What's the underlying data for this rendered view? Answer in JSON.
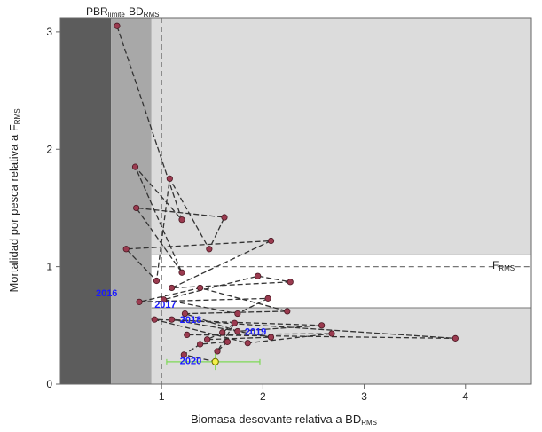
{
  "chart_data": {
    "type": "scatter",
    "xlabel": {
      "main": "Biomasa desovante relativa a BD",
      "sub": "RMS"
    },
    "ylabel": {
      "main": "Mortalidad por pesca relativa a F",
      "sub": "RMS"
    },
    "xlim": [
      0,
      4.65
    ],
    "ylim": [
      0,
      3.12
    ],
    "x_ticks": [
      1,
      2,
      3,
      4
    ],
    "y_ticks": [
      0,
      1,
      2,
      3
    ],
    "reference_labels": {
      "pbr": {
        "main": "PBR",
        "sub": "límite"
      },
      "bd": {
        "main": "BD",
        "sub": "RMS"
      },
      "f": {
        "main": "F",
        "sub": "RMS"
      }
    },
    "zones": {
      "pbr_limit_x": 0.5,
      "bd_rms_x": 0.9,
      "bd_rms_dashed_x": 1.0,
      "f_rms_y": 1.0,
      "f_upper_y": 1.1,
      "f_lower_y": 0.65,
      "colors": {
        "collapse": "#5c5c5c",
        "overexploited": "#a8a8a8",
        "warning": "#dcdcdc",
        "full": "#ffffff"
      }
    },
    "series": [
      {
        "points": [
          [
            0.56,
            3.05
          ],
          [
            1.2,
            1.4
          ],
          [
            0.74,
            1.85
          ],
          [
            1.2,
            0.95
          ],
          [
            0.75,
            1.5
          ],
          [
            1.62,
            1.42
          ],
          [
            1.47,
            1.15
          ],
          [
            1.08,
            1.75
          ],
          [
            0.95,
            0.88
          ],
          [
            0.65,
            1.15
          ],
          [
            2.08,
            1.22
          ],
          [
            1.1,
            0.82
          ],
          [
            2.27,
            0.87
          ],
          [
            1.95,
            0.92
          ],
          [
            1.02,
            0.72
          ],
          [
            1.75,
            0.6
          ],
          [
            2.05,
            0.73
          ],
          [
            0.78,
            0.7
          ],
          [
            1.38,
            0.82
          ],
          [
            2.24,
            0.62
          ],
          [
            1.23,
            0.6
          ],
          [
            1.75,
            0.45
          ],
          [
            2.58,
            0.5
          ],
          [
            0.93,
            0.55
          ],
          [
            1.85,
            0.35
          ],
          [
            2.68,
            0.43
          ],
          [
            1.25,
            0.42
          ],
          [
            3.9,
            0.39
          ],
          [
            1.1,
            0.55
          ],
          [
            2.08,
            0.4
          ],
          [
            1.45,
            0.38
          ],
          [
            1.6,
            0.44
          ],
          [
            1.72,
            0.52
          ],
          [
            1.55,
            0.28
          ],
          [
            1.65,
            0.36
          ],
          [
            1.38,
            0.34
          ],
          [
            1.22,
            0.25
          ]
        ],
        "current": {
          "x": 1.53,
          "y": 0.19,
          "x_err": [
            1.05,
            1.97
          ],
          "y_err": [
            0.12,
            0.26
          ]
        }
      }
    ],
    "year_labels": [
      {
        "text": "2016",
        "x": 0.35,
        "y": 0.78
      },
      {
        "text": "2017",
        "x": 0.93,
        "y": 0.68
      },
      {
        "text": "2018",
        "x": 1.18,
        "y": 0.55
      },
      {
        "text": "2019",
        "x": 1.82,
        "y": 0.45
      },
      {
        "text": "2020",
        "x": 1.18,
        "y": 0.2
      }
    ]
  }
}
